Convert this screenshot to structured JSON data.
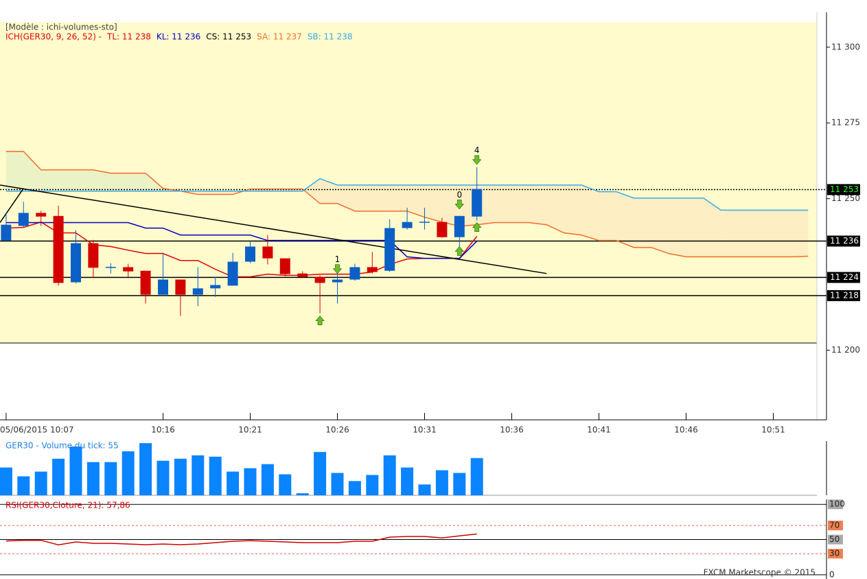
{
  "chart_data": [
    {
      "type": "candlestick",
      "title": "[Modèle : ichi-volumes-sto]",
      "subtitle": "ICH(GER30, 9, 26, 52) -",
      "close_label": "CS: 11 253",
      "close_label_color": "#000000",
      "up_color": "#0b5fc6",
      "down_color": "#d40000",
      "open": [
        11236.2,
        11241.0,
        11245.3,
        11244.3,
        11222.4,
        11235.3,
        11227.3,
        11227.4,
        11226.2,
        11218.3,
        11223.3,
        11218.3,
        11220.4,
        11221.3,
        11229.2,
        11234.2,
        11230.3,
        11225.3,
        11224.2,
        11222.4,
        11223.3,
        11227.4,
        11226.2,
        11240.3,
        11242.2,
        11242.3,
        11237.3,
        11244.1
      ],
      "high": [
        11245.5,
        11249.0,
        11246.0,
        11247.7,
        11239.6,
        11236.4,
        11228.7,
        11228.5,
        11226.2,
        11231.9,
        11223.3,
        11227.4,
        11224.2,
        11232.1,
        11236.0,
        11238.0,
        11230.3,
        11226.0,
        11224.7,
        11225.6,
        11228.5,
        11232.4,
        11243.2,
        11247.0,
        11247.0,
        11243.7,
        11244.3,
        11260.4
      ],
      "low": [
        11236.0,
        11240.5,
        11241.0,
        11221.3,
        11222.0,
        11223.8,
        11225.3,
        11224.2,
        11215.4,
        11217.9,
        11211.3,
        11214.5,
        11217.6,
        11221.3,
        11228.7,
        11228.3,
        11224.4,
        11223.8,
        11212.2,
        11215.4,
        11222.9,
        11225.3,
        11225.8,
        11239.8,
        11239.8,
        11237.1,
        11233.7,
        11242.8
      ],
      "close": [
        11241.4,
        11245.3,
        11244.1,
        11222.2,
        11235.3,
        11227.2,
        11227.5,
        11226.0,
        11218.3,
        11223.3,
        11218.3,
        11220.4,
        11221.5,
        11229.2,
        11234.2,
        11230.3,
        11225.1,
        11224.2,
        11222.2,
        11223.3,
        11227.4,
        11225.8,
        11240.3,
        11242.3,
        11242.4,
        11237.3,
        11244.3,
        11253.2
      ],
      "series": [
        {
          "name": "TL: 11 238",
          "color": "#e00000",
          "values": [
            11240.3,
            11240.5,
            11242.3,
            11238.7,
            11238.7,
            11234.8,
            11234.2,
            11233.0,
            11231.9,
            11231.9,
            11229.6,
            11229.6,
            11226.7,
            11224.2,
            11224.2,
            11225.1,
            11224.7,
            11224.7,
            11225.1,
            11225.1,
            11225.1,
            11225.8,
            11228.3,
            11230.1,
            11230.3,
            11230.3,
            11230.3,
            11237.6,
            null,
            null,
            null,
            null,
            null,
            null,
            null,
            null,
            null,
            null,
            null,
            null,
            null,
            null,
            null,
            null,
            null,
            null,
            null
          ]
        },
        {
          "name": "KL: 11 236",
          "color": "#0000c0",
          "values": [
            11242.1,
            11242.1,
            11242.1,
            11242.1,
            11242.1,
            11242.1,
            11242.1,
            11242.1,
            11240.3,
            11240.3,
            11238.0,
            11238.0,
            11238.0,
            11238.0,
            11238.0,
            11236.2,
            11236.2,
            11236.2,
            11236.2,
            11236.2,
            11236.2,
            11236.2,
            11236.2,
            11230.8,
            11230.3,
            11230.3,
            11230.3,
            11236.0,
            null,
            null,
            null,
            null,
            null,
            null,
            null,
            null,
            null,
            null,
            null,
            null,
            null,
            null,
            null,
            null,
            null,
            null,
            null
          ]
        },
        {
          "name": "SA: 11 237",
          "color": "#f26b2e",
          "values": [
            11265.6,
            11265.6,
            11259.5,
            11259.5,
            11259.5,
            11259.5,
            11258.4,
            11258.4,
            11258.4,
            11253.4,
            11252.5,
            11251.4,
            11251.4,
            11251.4,
            11253.2,
            11253.2,
            11253.2,
            11253.2,
            11248.4,
            11248.4,
            11245.9,
            11245.9,
            11245.9,
            11245.9,
            11243.9,
            11242.3,
            11240.9,
            11241.4,
            11242.1,
            11242.1,
            11242.1,
            11241.4,
            11238.7,
            11238.0,
            11236.2,
            11236.2,
            11233.9,
            11233.9,
            11231.9,
            11230.8,
            11230.8,
            11230.8,
            11230.8,
            11230.8,
            11230.8,
            11230.8,
            11231.0
          ]
        },
        {
          "name": "SB: 11 238",
          "color": "#35a9ec",
          "values": [
            11252.5,
            11252.5,
            11252.5,
            11252.5,
            11252.5,
            11252.5,
            11252.5,
            11252.5,
            11252.5,
            11252.5,
            11252.5,
            11252.5,
            11252.5,
            11252.5,
            11252.5,
            11252.5,
            11252.5,
            11252.5,
            11256.6,
            11254.5,
            11254.5,
            11254.5,
            11254.5,
            11254.5,
            11254.5,
            11254.5,
            11254.5,
            11254.5,
            11254.5,
            11254.5,
            11254.5,
            11254.5,
            11254.5,
            11254.5,
            11252.3,
            11252.3,
            11250.2,
            11250.2,
            11250.2,
            11250.2,
            11250.2,
            11246.2,
            11246.2,
            11246.2,
            11246.2,
            11246.2,
            11246.2
          ]
        }
      ],
      "cloud_colors": [
        "#e6f0c4",
        "#fcebc0"
      ],
      "levels": [
        {
          "value": 11253,
          "label": "11 253",
          "style": "dotted",
          "text_color": "#33ff33"
        },
        {
          "value": 11236,
          "label": "11 236",
          "style": "solid",
          "text_color": "#ffffff"
        },
        {
          "value": 11224,
          "label": "11 224",
          "style": "solid",
          "text_color": "#ffffff"
        },
        {
          "value": 11218,
          "label": "11 218",
          "style": "solid",
          "text_color": "#ffffff"
        }
      ],
      "trendlines": [
        {
          "x": [
            -0.35,
            31
          ],
          "values": [
            11254.5,
            11225.3
          ]
        },
        {
          "x": [
            -0.35,
            1
          ],
          "values": [
            11242.1,
            11253.4
          ]
        }
      ],
      "signals": [
        {
          "x": 18,
          "y": 11209.7,
          "direction": "up"
        },
        {
          "x": 19,
          "y": 11226.9,
          "direction": "down",
          "label": "1"
        },
        {
          "x": 26,
          "y": 11248.2,
          "direction": "down",
          "label": "0"
        },
        {
          "x": 26,
          "y": 11232.6,
          "direction": "up"
        },
        {
          "x": 27,
          "y": 11262.9,
          "direction": "down",
          "label": "4"
        },
        {
          "x": 27,
          "y": 11240.5,
          "direction": "up"
        }
      ],
      "xlim": [
        -0.35,
        46.5
      ],
      "xticks": [
        {
          "value": 0,
          "label": "05/06/2015 10:07"
        },
        {
          "value": 9,
          "label": "10:16"
        },
        {
          "value": 14,
          "label": "10:21"
        },
        {
          "value": 19,
          "label": "10:26"
        },
        {
          "value": 24,
          "label": "10:31"
        },
        {
          "value": 29,
          "label": "10:36"
        },
        {
          "value": 34,
          "label": "10:41"
        },
        {
          "value": 39,
          "label": "10:46"
        },
        {
          "value": 44,
          "label": "10:51"
        }
      ],
      "ylim": [
        11177,
        11311.5
      ],
      "yticks": [
        {
          "value": 11200,
          "label": "11 200"
        },
        {
          "value": 11250,
          "label": "11 250"
        },
        {
          "value": 11275,
          "label": "11 275"
        },
        {
          "value": 11300,
          "label": "11 300"
        }
      ]
    },
    {
      "type": "bar",
      "title": "GER30 - Volume du tick: 55",
      "color": "#0a84ff",
      "values": [
        41,
        28,
        35,
        54,
        72,
        49,
        49,
        65,
        77,
        51,
        54,
        59,
        57,
        35,
        40,
        46,
        31,
        3,
        64,
        33,
        21,
        30,
        59,
        41,
        16,
        37,
        33,
        55
      ],
      "ylim": [
        0,
        80
      ]
    },
    {
      "type": "line",
      "title": "RSI(GER30,Cloture, 21): 57,86",
      "color": "#d00000",
      "values": [
        48.0,
        49.0,
        49.0,
        42.5,
        46.6,
        44.7,
        44.7,
        43.7,
        42.7,
        43.7,
        42.7,
        43.7,
        45.6,
        47.6,
        48.5,
        47.6,
        46.6,
        45.6,
        45.6,
        45.6,
        47.6,
        47.6,
        53.4,
        54.4,
        54.4,
        52.4,
        55.3,
        57.9
      ],
      "ylim": [
        -4,
        107
      ],
      "yticks": [
        100,
        70,
        50,
        30,
        0
      ],
      "ytick_styles": [
        "edge",
        "band",
        "middle",
        "band",
        "edge"
      ],
      "footer": "FXCM Marketscope © 2015"
    }
  ]
}
